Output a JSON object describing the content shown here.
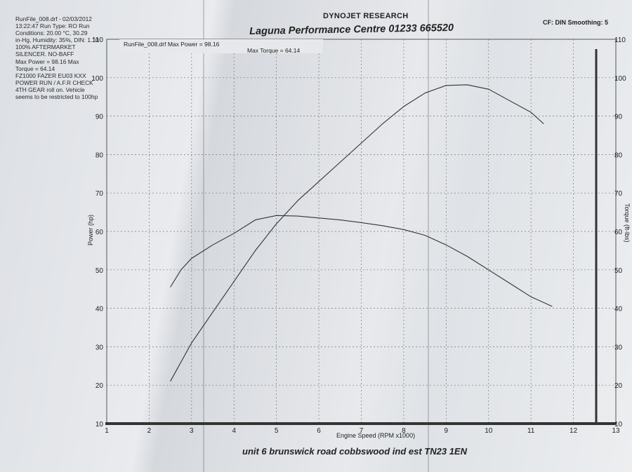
{
  "header": {
    "company": "DYNOJET RESEARCH",
    "shop": "Laguna Performance Centre 01233 665520",
    "cf": "CF: DIN  Smoothing: 5",
    "footer": "unit 6 brunswick road cobbswood ind est TN23 1EN"
  },
  "run_info": [
    "RunFile_008.drf - 02/03/2012",
    "13:22:47  Run Type: RO  Run",
    "Conditions: 20.00 °C, 30.29",
    "in-Hg, Humidity: 35%, DIN: 1.10",
    "100% AFTERMARKET",
    "SILENCER. NO-BAFF",
    "Max Power = 98.16  Max",
    "Torque = 64.14",
    "FZ1000 FAZER   EU03 KXX",
    "POWER RUN / A.F.R CHECK",
    "4TH GEAR roll on. Vehicle",
    "seems to be restricted to 100hp"
  ],
  "legend": {
    "label": "RunFile_008.drf Max Power = 98.16",
    "torque_label": "Max Torque = 64.14"
  },
  "chart_data": {
    "type": "line",
    "xlabel": "Engine Speed (RPM x1000)",
    "ylabel": "Power (hp)",
    "y2label": "Torque (ft-lbs)",
    "xlim": [
      1,
      13
    ],
    "ylim": [
      10,
      110
    ],
    "y2lim": [
      10,
      110
    ],
    "x_ticks": [
      "1",
      "2",
      "3",
      "4",
      "5",
      "6",
      "7",
      "8",
      "9",
      "10",
      "11",
      "12",
      "13"
    ],
    "y_ticks": [
      "10",
      "20",
      "30",
      "40",
      "50",
      "60",
      "70",
      "80",
      "90",
      "100",
      "110"
    ],
    "y2_ticks": [
      "10",
      "20",
      "30",
      "40",
      "50",
      "60",
      "70",
      "80",
      "90",
      "100",
      "110"
    ],
    "grid": true,
    "series": [
      {
        "name": "RunFile_008.drf",
        "axis": "left",
        "x": [
          2.5,
          3.0,
          3.5,
          4.0,
          4.5,
          5.0,
          5.5,
          6.0,
          6.5,
          7.0,
          7.5,
          8.0,
          8.5,
          9.0,
          9.5,
          10.0,
          10.5,
          11.0,
          11.3
        ],
        "values": [
          21,
          31,
          39,
          47,
          55,
          62,
          68,
          73,
          78,
          83,
          88,
          92.5,
          96,
          98,
          98.16,
          97,
          94,
          91,
          88
        ]
      },
      {
        "name": "Max Torque = 64.14",
        "axis": "right",
        "x": [
          2.5,
          2.75,
          3.0,
          3.5,
          4.0,
          4.5,
          5.0,
          5.5,
          6.0,
          6.5,
          7.0,
          7.5,
          8.0,
          8.5,
          9.0,
          9.5,
          10.0,
          10.5,
          11.0,
          11.5
        ],
        "values": [
          45.5,
          50,
          53,
          56.5,
          59.5,
          63,
          64.14,
          64,
          63.5,
          63,
          62.3,
          61.5,
          60.5,
          59,
          56.5,
          53.5,
          50,
          46.5,
          43,
          40.5
        ]
      }
    ]
  }
}
